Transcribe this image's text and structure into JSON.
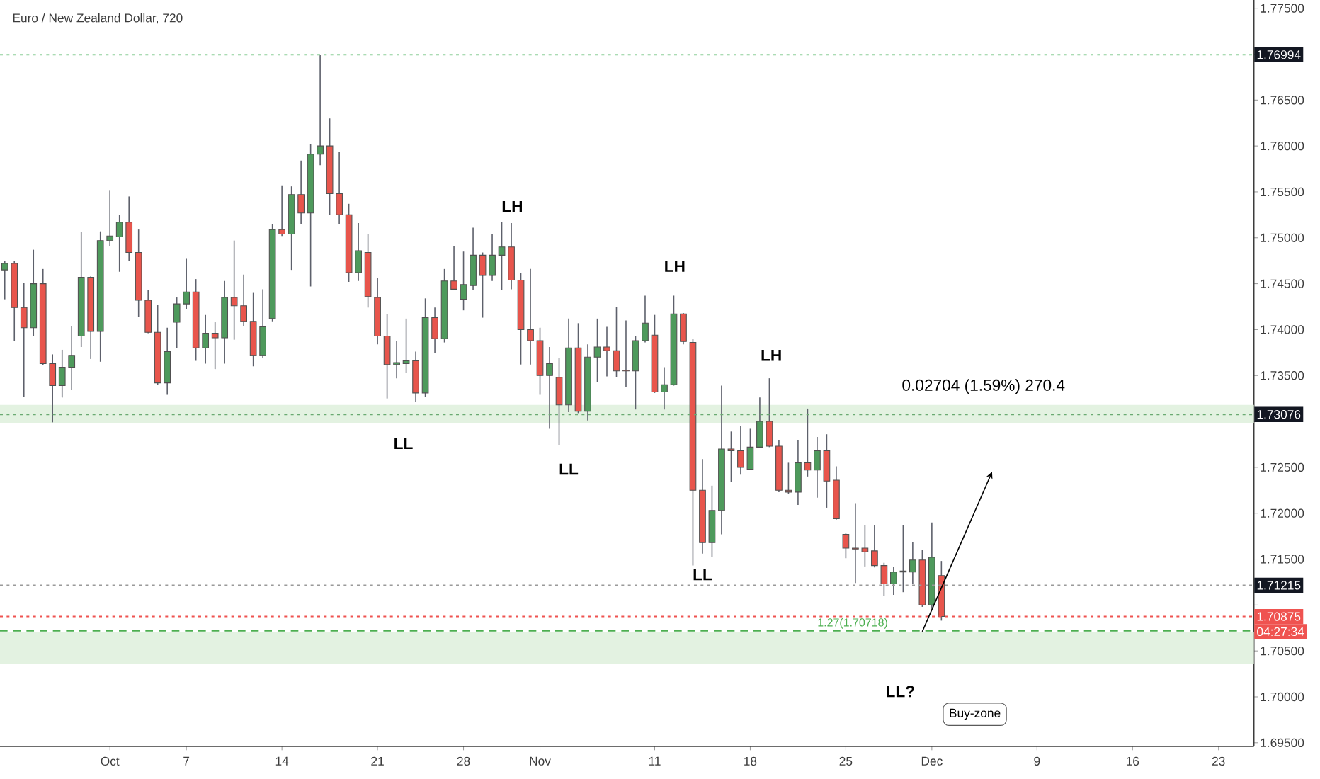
{
  "chart_data": {
    "type": "candlestick",
    "title": "Euro / New Zealand Dollar, 720",
    "categories": [
      null,
      null,
      null,
      null,
      null,
      null,
      null,
      null,
      null,
      null,
      null,
      "Oct",
      null,
      null,
      null,
      null,
      null,
      null,
      null,
      "7",
      null,
      null,
      null,
      null,
      null,
      null,
      null,
      null,
      null,
      "14",
      null,
      null,
      null,
      null,
      null,
      null,
      null,
      null,
      null,
      "21",
      null,
      null,
      null,
      null,
      null,
      null,
      null,
      null,
      "28",
      null,
      null,
      null,
      null,
      null,
      null,
      null,
      "Nov",
      null,
      null,
      null,
      null,
      null,
      null,
      null,
      null,
      null,
      null,
      null,
      "11",
      null,
      null,
      null,
      null,
      null,
      null,
      null,
      null,
      null,
      "18",
      null,
      null,
      null,
      null,
      null,
      null,
      null,
      null,
      null,
      "25",
      null,
      null,
      null,
      null,
      null,
      null,
      null,
      null,
      "Dec",
      null,
      null,
      null,
      null,
      null,
      null,
      null,
      null,
      null,
      null,
      "9",
      null,
      null,
      null,
      null,
      null,
      null,
      null,
      null,
      null,
      "16",
      null,
      null,
      null,
      null,
      null,
      null,
      null,
      null,
      "23",
      null,
      null,
      null
    ],
    "ohlc": [
      [
        1.7465,
        1.7475,
        1.7433,
        1.7472
      ],
      [
        1.7472,
        1.7475,
        1.7388,
        1.7424
      ],
      [
        1.7424,
        1.7451,
        1.7327,
        1.7402
      ],
      [
        1.7402,
        1.7487,
        1.7393,
        1.745
      ],
      [
        1.745,
        1.7466,
        1.7361,
        1.7363
      ],
      [
        1.7363,
        1.7373,
        1.7299,
        1.7339
      ],
      [
        1.7339,
        1.7378,
        1.7326,
        1.7359
      ],
      [
        1.7359,
        1.7404,
        1.7334,
        1.7372
      ],
      [
        1.7393,
        1.7506,
        1.7381,
        1.7457
      ],
      [
        1.7457,
        1.7458,
        1.7368,
        1.7398
      ],
      [
        1.7398,
        1.7507,
        1.7365,
        1.7497
      ],
      [
        1.7497,
        1.7552,
        1.7491,
        1.7502
      ],
      [
        1.7501,
        1.7525,
        1.7463,
        1.7517
      ],
      [
        1.7517,
        1.7545,
        1.7475,
        1.7484
      ],
      [
        1.7484,
        1.7509,
        1.7414,
        1.7432
      ],
      [
        1.7432,
        1.7443,
        1.7396,
        1.7397
      ],
      [
        1.7397,
        1.7427,
        1.734,
        1.7342
      ],
      [
        1.7342,
        1.7402,
        1.7329,
        1.7376
      ],
      [
        1.7408,
        1.7435,
        1.738,
        1.7428
      ],
      [
        1.7428,
        1.7477,
        1.7422,
        1.7441
      ],
      [
        1.7441,
        1.7455,
        1.7366,
        1.738
      ],
      [
        1.738,
        1.7416,
        1.7363,
        1.7396
      ],
      [
        1.7396,
        1.7408,
        1.7357,
        1.7391
      ],
      [
        1.7391,
        1.7453,
        1.7363,
        1.7435
      ],
      [
        1.7435,
        1.7497,
        1.7389,
        1.7426
      ],
      [
        1.7426,
        1.746,
        1.7404,
        1.7409
      ],
      [
        1.7409,
        1.744,
        1.736,
        1.7372
      ],
      [
        1.7372,
        1.7444,
        1.7369,
        1.7403
      ],
      [
        1.7412,
        1.7515,
        1.7409,
        1.7509
      ],
      [
        1.7509,
        1.7557,
        1.7502,
        1.7504
      ],
      [
        1.7504,
        1.7556,
        1.7465,
        1.7547
      ],
      [
        1.7547,
        1.7584,
        1.7515,
        1.7527
      ],
      [
        1.7527,
        1.7602,
        1.7447,
        1.7591
      ],
      [
        1.7591,
        1.7699,
        1.7579,
        1.76
      ],
      [
        1.76,
        1.763,
        1.7525,
        1.7548
      ],
      [
        1.7548,
        1.7594,
        1.7515,
        1.7525
      ],
      [
        1.7525,
        1.7537,
        1.7452,
        1.7462
      ],
      [
        1.7462,
        1.7516,
        1.7453,
        1.7486
      ],
      [
        1.7484,
        1.7504,
        1.7424,
        1.7436
      ],
      [
        1.7435,
        1.7456,
        1.7384,
        1.7393
      ],
      [
        1.7393,
        1.7417,
        1.7325,
        1.7362
      ],
      [
        1.7362,
        1.7388,
        1.7347,
        1.7364
      ],
      [
        1.7363,
        1.7412,
        1.7353,
        1.7366
      ],
      [
        1.7366,
        1.7376,
        1.7321,
        1.7331
      ],
      [
        1.7331,
        1.7434,
        1.7327,
        1.7413
      ],
      [
        1.7413,
        1.7424,
        1.7374,
        1.739
      ],
      [
        1.739,
        1.7466,
        1.7386,
        1.7453
      ],
      [
        1.7453,
        1.7491,
        1.7443,
        1.7444
      ],
      [
        1.7433,
        1.7485,
        1.7421,
        1.7449
      ],
      [
        1.7448,
        1.7511,
        1.7443,
        1.7481
      ],
      [
        1.7481,
        1.7484,
        1.7413,
        1.7459
      ],
      [
        1.7459,
        1.7504,
        1.7453,
        1.7481
      ],
      [
        1.7481,
        1.7517,
        1.7443,
        1.749
      ],
      [
        1.749,
        1.7516,
        1.7444,
        1.7454
      ],
      [
        1.7454,
        1.7462,
        1.7362,
        1.74
      ],
      [
        1.74,
        1.7466,
        1.7362,
        1.7388
      ],
      [
        1.7388,
        1.7402,
        1.7329,
        1.735
      ],
      [
        1.735,
        1.7381,
        1.7292,
        1.7363
      ],
      [
        1.7348,
        1.7369,
        1.7274,
        1.7318
      ],
      [
        1.7318,
        1.7412,
        1.731,
        1.738
      ],
      [
        1.738,
        1.7407,
        1.7309,
        1.7311
      ],
      [
        1.7311,
        1.7384,
        1.7301,
        1.737
      ],
      [
        1.737,
        1.7412,
        1.7343,
        1.7381
      ],
      [
        1.7381,
        1.7403,
        1.7349,
        1.7377
      ],
      [
        1.7377,
        1.7425,
        1.7348,
        1.7355
      ],
      [
        1.7356,
        1.741,
        1.7337,
        1.7355
      ],
      [
        1.7355,
        1.7393,
        1.7313,
        1.7388
      ],
      [
        1.7388,
        1.7437,
        1.7386,
        1.7407
      ],
      [
        1.7394,
        1.7416,
        1.7331,
        1.7332
      ],
      [
        1.7332,
        1.7359,
        1.7313,
        1.734
      ],
      [
        1.734,
        1.7437,
        1.7339,
        1.7417
      ],
      [
        1.7417,
        1.7418,
        1.7384,
        1.7387
      ],
      [
        1.7386,
        1.739,
        1.7143,
        1.7225
      ],
      [
        1.7225,
        1.7259,
        1.7156,
        1.7168
      ],
      [
        1.7168,
        1.723,
        1.7152,
        1.7203
      ],
      [
        1.7203,
        1.7339,
        1.7177,
        1.727
      ],
      [
        1.727,
        1.7289,
        1.7234,
        1.7268
      ],
      [
        1.7268,
        1.7295,
        1.7242,
        1.725
      ],
      [
        1.7248,
        1.7292,
        1.7247,
        1.7272
      ],
      [
        1.7272,
        1.7326,
        1.7271,
        1.73
      ],
      [
        1.73,
        1.7347,
        1.7272,
        1.7273
      ],
      [
        1.7273,
        1.728,
        1.7223,
        1.7225
      ],
      [
        1.7225,
        1.7255,
        1.7221,
        1.7223
      ],
      [
        1.7223,
        1.728,
        1.7209,
        1.7255
      ],
      [
        1.7255,
        1.7314,
        1.724,
        1.7247
      ],
      [
        1.7247,
        1.7283,
        1.7217,
        1.7268
      ],
      [
        1.7268,
        1.7286,
        1.7206,
        1.7235
      ],
      [
        1.7236,
        1.7251,
        1.7193,
        1.7194
      ],
      [
        1.7177,
        1.7178,
        1.7151,
        1.7162
      ],
      [
        1.7162,
        1.7211,
        1.7124,
        1.7161
      ],
      [
        1.7162,
        1.7187,
        1.7142,
        1.7158
      ],
      [
        1.7159,
        1.7187,
        1.7141,
        1.7143
      ],
      [
        1.7143,
        1.7146,
        1.711,
        1.7123
      ],
      [
        1.7123,
        1.7142,
        1.7111,
        1.7136
      ],
      [
        1.7136,
        1.7187,
        1.7114,
        1.7137
      ],
      [
        1.7136,
        1.7169,
        1.7123,
        1.7149
      ],
      [
        1.7149,
        1.716,
        1.7098,
        1.71
      ],
      [
        1.71,
        1.719,
        1.7096,
        1.7152
      ],
      [
        1.7132,
        1.7148,
        1.7083,
        1.70875
      ],
      null,
      null,
      null,
      null,
      null,
      null,
      null,
      null,
      null,
      null,
      null,
      null,
      null,
      null,
      null,
      null,
      null,
      null,
      null,
      null,
      null,
      null,
      null,
      null,
      null,
      null,
      null,
      null,
      null,
      null,
      null,
      null
    ],
    "colors": [
      "#4e9a5c",
      "#e8554c",
      "#e8554c",
      "#4e9a5c",
      "#e8554c",
      "#e8554c",
      "#4e9a5c",
      "#4e9a5c",
      "#4e9a5c",
      "#e8554c",
      "#4e9a5c",
      "#4e9a5c",
      "#4e9a5c",
      "#e8554c",
      "#e8554c",
      "#e8554c",
      "#e8554c",
      "#4e9a5c",
      "#4e9a5c",
      "#4e9a5c",
      "#e8554c",
      "#4e9a5c",
      "#e8554c",
      "#4e9a5c",
      "#e8554c",
      "#e8554c",
      "#e8554c",
      "#4e9a5c",
      "#4e9a5c",
      "#e8554c",
      "#4e9a5c",
      "#e8554c",
      "#4e9a5c",
      "#4e9a5c",
      "#e8554c",
      "#e8554c",
      "#e8554c",
      "#4e9a5c",
      "#e8554c",
      "#e8554c",
      "#e8554c",
      "#4e9a5c",
      "#4e9a5c",
      "#e8554c",
      "#4e9a5c",
      "#e8554c",
      "#4e9a5c",
      "#e8554c",
      "#4e9a5c",
      "#4e9a5c",
      "#e8554c",
      "#4e9a5c",
      "#4e9a5c",
      "#e8554c",
      "#e8554c",
      "#e8554c",
      "#e8554c",
      "#4e9a5c",
      "#e8554c",
      "#4e9a5c",
      "#e8554c",
      "#4e9a5c",
      "#4e9a5c",
      "#e8554c",
      "#e8554c",
      "#e8554c",
      "#4e9a5c",
      "#4e9a5c",
      "#e8554c",
      "#4e9a5c",
      "#4e9a5c",
      "#e8554c",
      "#e8554c",
      "#e8554c",
      "#4e9a5c",
      "#4e9a5c",
      "#e8554c",
      "#e8554c",
      "#4e9a5c",
      "#4e9a5c",
      "#e8554c",
      "#e8554c",
      "#e8554c",
      "#4e9a5c",
      "#e8554c",
      "#4e9a5c",
      "#e8554c",
      "#e8554c",
      "#e8554c",
      "#e8554c",
      "#e8554c",
      "#e8554c",
      "#e8554c",
      "#4e9a5c",
      "#4e9a5c",
      "#4e9a5c",
      "#e8554c",
      "#4e9a5c",
      "#e8554c",
      null,
      null,
      null,
      null,
      null,
      null,
      null,
      null,
      null,
      null,
      null,
      null,
      null,
      null,
      null,
      null,
      null,
      null,
      null,
      null,
      null,
      null,
      null,
      null,
      null,
      null,
      null,
      null,
      null,
      null,
      null,
      null
    ],
    "ylim": [
      1.6946,
      1.7759
    ],
    "yticks": [
      {
        "value": 1.695,
        "label": "1.69500"
      },
      {
        "value": 1.7,
        "label": "1.70000"
      },
      {
        "value": 1.705,
        "label": "1.70500"
      },
      {
        "value": 1.71,
        "label": null
      },
      {
        "value": 1.715,
        "label": "1.71500"
      },
      {
        "value": 1.72,
        "label": "1.72000"
      },
      {
        "value": 1.725,
        "label": "1.72500"
      },
      {
        "value": 1.73,
        "label": null
      },
      {
        "value": 1.735,
        "label": "1.73500"
      },
      {
        "value": 1.74,
        "label": "1.74000"
      },
      {
        "value": 1.745,
        "label": "1.74500"
      },
      {
        "value": 1.75,
        "label": "1.75000"
      },
      {
        "value": 1.755,
        "label": "1.75500"
      },
      {
        "value": 1.76,
        "label": "1.76000"
      },
      {
        "value": 1.765,
        "label": "1.76500"
      },
      {
        "value": 1.77,
        "label": null
      },
      {
        "value": 1.775,
        "label": "1.77500"
      }
    ],
    "bands": [
      {
        "axis": "y",
        "from": 1.7298,
        "to": 1.7318,
        "color": "#e3f2e1"
      },
      {
        "axis": "y",
        "from": 1.70355,
        "to": 1.7071,
        "color": "#e3f2e1"
      }
    ],
    "ref_lines": [
      {
        "axis": "y",
        "value": 1.76994,
        "label": "1.76994",
        "color": "#8fcf9a",
        "line_style": "dotted"
      },
      {
        "axis": "y",
        "value": 1.73076,
        "label": "1.73076",
        "color": "#6aaa72",
        "line_style": "dotted"
      },
      {
        "axis": "y",
        "value": 1.71215,
        "label": "1.71215",
        "color": "#9a9a9a",
        "line_style": "dotted"
      },
      {
        "axis": "y",
        "value": 1.70718,
        "label": "1.27(1.70718)",
        "color": "#4caf50",
        "line_style": "dashed"
      },
      {
        "axis": "y",
        "value": 1.70875,
        "label": "1.70875",
        "color": "#ef5350",
        "line_style": "dotted"
      }
    ],
    "annotations": [
      "LH",
      "LH",
      "LH",
      "LL",
      "LL",
      "LL",
      "LL?",
      "Buy-zone",
      "0.02704 (1.59%) 270.4",
      "04:27:34"
    ]
  }
}
